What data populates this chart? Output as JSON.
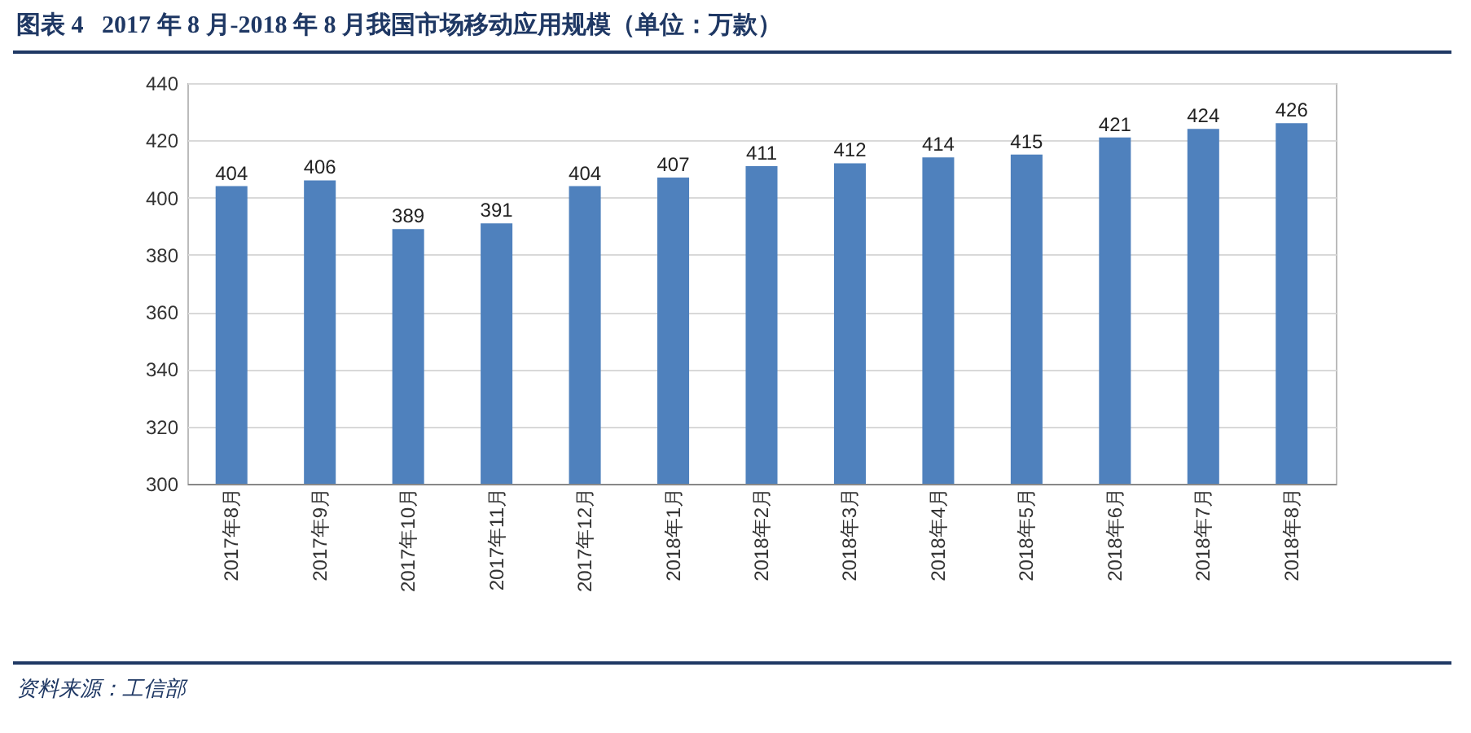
{
  "chart_data": {
    "type": "bar",
    "title": "图表 4   2017 年 8 月-2018 年 8 月我国市场移动应用规模（单位：万款）",
    "categories": [
      "2017年8月",
      "2017年9月",
      "2017年10月",
      "2017年11月",
      "2017年12月",
      "2018年1月",
      "2018年2月",
      "2018年3月",
      "2018年4月",
      "2018年5月",
      "2018年6月",
      "2018年7月",
      "2018年8月"
    ],
    "values": [
      404,
      406,
      389,
      391,
      404,
      407,
      411,
      412,
      414,
      415,
      421,
      424,
      426
    ],
    "color": "#4f81bd",
    "ylim": [
      300,
      440
    ],
    "yticks": [
      300,
      320,
      340,
      360,
      380,
      400,
      420,
      440
    ],
    "grid": "y",
    "data_labels": true,
    "annotations": [
      "资料来源：工信部"
    ]
  }
}
